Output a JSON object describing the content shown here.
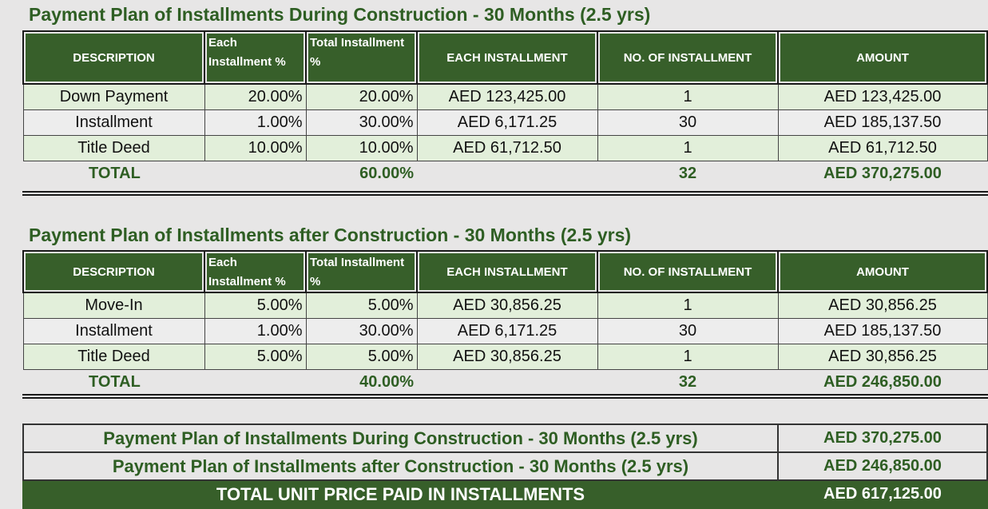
{
  "during": {
    "title": "Payment Plan of Installments During Construction - 30 Months (2.5 yrs)",
    "headers": {
      "description": "DESCRIPTION",
      "each_pct_1": "Each",
      "each_pct_2": "Installment %",
      "total_pct_1": "Total Installment",
      "total_pct_2": "%",
      "each_installment": "EACH INSTALLMENT",
      "count": "NO. OF INSTALLMENT",
      "amount": "AMOUNT"
    },
    "rows": [
      {
        "description": "Down Payment",
        "each_pct": "20.00%",
        "total_pct": "20.00%",
        "each_installment": "AED 123,425.00",
        "count": "1",
        "amount": "AED 123,425.00"
      },
      {
        "description": "Installment",
        "each_pct": "1.00%",
        "total_pct": "30.00%",
        "each_installment": "AED 6,171.25",
        "count": "30",
        "amount": "AED 185,137.50"
      },
      {
        "description": "Title Deed",
        "each_pct": "10.00%",
        "total_pct": "10.00%",
        "each_installment": "AED 61,712.50",
        "count": "1",
        "amount": "AED 61,712.50"
      }
    ],
    "total": {
      "label": "TOTAL",
      "total_pct": "60.00%",
      "count": "32",
      "amount": "AED 370,275.00"
    }
  },
  "after": {
    "title": "Payment Plan of Installments after Construction - 30 Months (2.5 yrs)",
    "headers": {
      "description": "DESCRIPTION",
      "each_pct_1": "Each",
      "each_pct_2": "Installment %",
      "total_pct_1": "Total Installment",
      "total_pct_2": "%",
      "each_installment": "EACH INSTALLMENT",
      "count": "NO. OF INSTALLMENT",
      "amount": "AMOUNT"
    },
    "rows": [
      {
        "description": "Move-In",
        "each_pct": "5.00%",
        "total_pct": "5.00%",
        "each_installment": "AED 30,856.25",
        "count": "1",
        "amount": "AED 30,856.25"
      },
      {
        "description": "Installment",
        "each_pct": "1.00%",
        "total_pct": "30.00%",
        "each_installment": "AED 6,171.25",
        "count": "30",
        "amount": "AED 185,137.50"
      },
      {
        "description": "Title Deed",
        "each_pct": "5.00%",
        "total_pct": "5.00%",
        "each_installment": "AED 30,856.25",
        "count": "1",
        "amount": "AED 30,856.25"
      }
    ],
    "total": {
      "label": "TOTAL",
      "total_pct": "40.00%",
      "count": "32",
      "amount": "AED 246,850.00"
    }
  },
  "summary": {
    "rows": [
      {
        "label": "Payment Plan of Installments During Construction - 30 Months (2.5 yrs)",
        "amount": "AED 370,275.00"
      },
      {
        "label": "Payment Plan of Installments after Construction - 30 Months (2.5 yrs)",
        "amount": "AED 246,850.00"
      }
    ],
    "grand_total": {
      "label": "TOTAL UNIT PRICE PAID IN INSTALLMENTS",
      "amount": "AED 617,125.00"
    }
  }
}
